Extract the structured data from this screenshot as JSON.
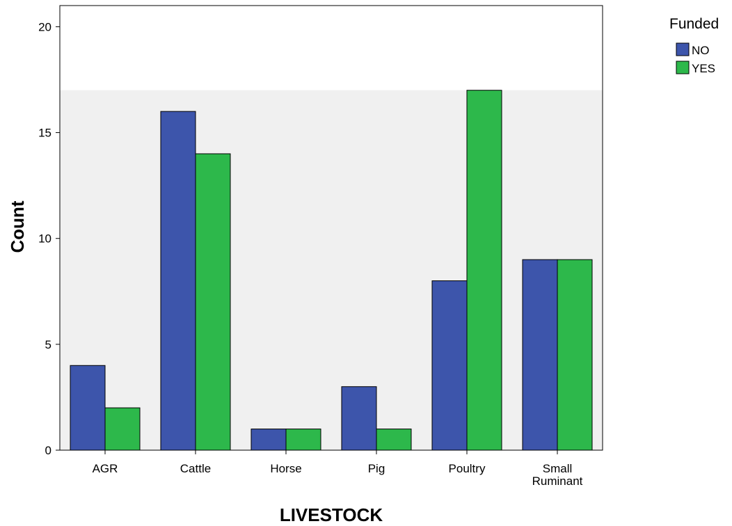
{
  "chart_data": {
    "type": "bar",
    "xlabel": "LIVESTOCK",
    "ylabel": "Count",
    "categories": [
      "AGR",
      "Cattle",
      "Horse",
      "Pig",
      "Poultry",
      "Small Ruminant"
    ],
    "series": [
      {
        "name": "NO",
        "values": [
          4,
          16,
          1,
          3,
          8,
          9
        ],
        "color": "#3D55AB"
      },
      {
        "name": "YES",
        "values": [
          2,
          14,
          1,
          1,
          17,
          9
        ],
        "color": "#2DB84B"
      }
    ],
    "ylim": [
      0,
      21
    ],
    "yticks": [
      0,
      5,
      10,
      15,
      20
    ],
    "legend": {
      "title": "Funded",
      "position": "top-right-outside"
    },
    "shaded_region_max": 17,
    "shaded_color": "#F0F0F0",
    "grid": false
  }
}
